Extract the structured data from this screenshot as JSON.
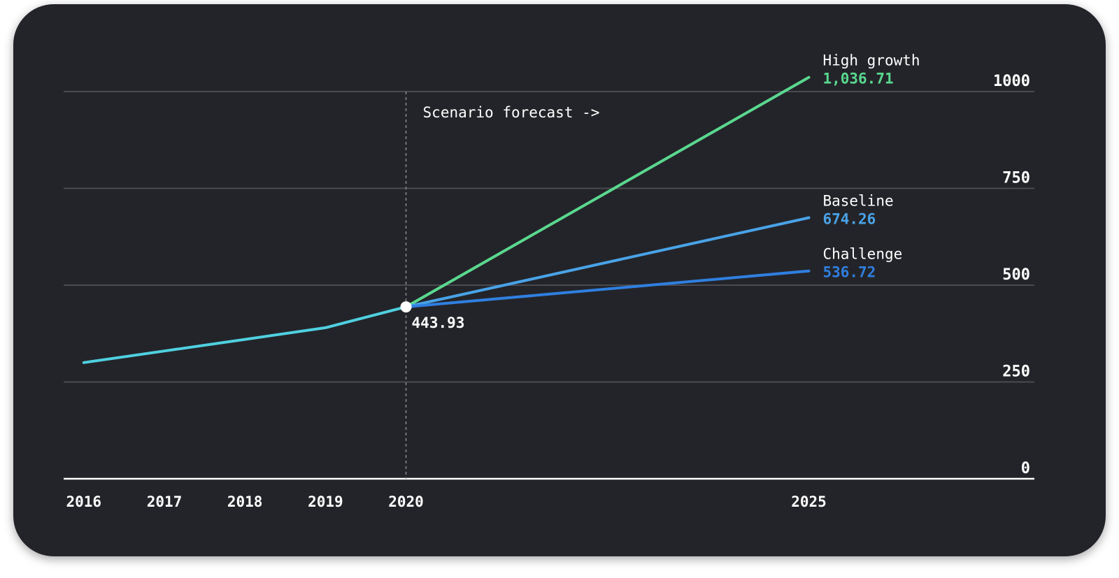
{
  "colors": {
    "background": "#232429",
    "grid": "#4a4b50",
    "axis": "#ffffff",
    "text": "#ffffff",
    "divider": "#8a8b90",
    "historical": "#4fd0e0",
    "high_growth": "#5ad88f",
    "baseline": "#49a3e8",
    "challenge": "#2f7fe0"
  },
  "chart_data": {
    "type": "line",
    "title": "",
    "xlabel": "",
    "ylabel": "",
    "xlim": [
      2015.75,
      2027.8
    ],
    "ylim": [
      0,
      1000
    ],
    "x_ticks": [
      "2016",
      "2017",
      "2018",
      "2019",
      "2020",
      "2025"
    ],
    "y_ticks": [
      "0",
      "250",
      "500",
      "750",
      "1000"
    ],
    "y_axis_position": "right",
    "grid": true,
    "legend": "end-of-line labels",
    "annotation": "Scenario forecast ->",
    "forecast_start": 2020,
    "anchor": {
      "x": 2020,
      "y": 443.93,
      "label": "443.93"
    },
    "series": [
      {
        "name": "",
        "role": "historical",
        "x": [
          2016,
          2017,
          2018,
          2019,
          2020
        ],
        "y": [
          300,
          330,
          360,
          390,
          443.93
        ]
      },
      {
        "name": "High growth",
        "value_label": "1,036.71",
        "x": [
          2020,
          2025
        ],
        "y": [
          443.93,
          1036.71
        ]
      },
      {
        "name": "Baseline",
        "value_label": "674.26",
        "x": [
          2020,
          2025
        ],
        "y": [
          443.93,
          674.26
        ]
      },
      {
        "name": "Challenge",
        "value_label": "536.72",
        "x": [
          2020,
          2025
        ],
        "y": [
          443.93,
          536.72
        ]
      }
    ]
  }
}
